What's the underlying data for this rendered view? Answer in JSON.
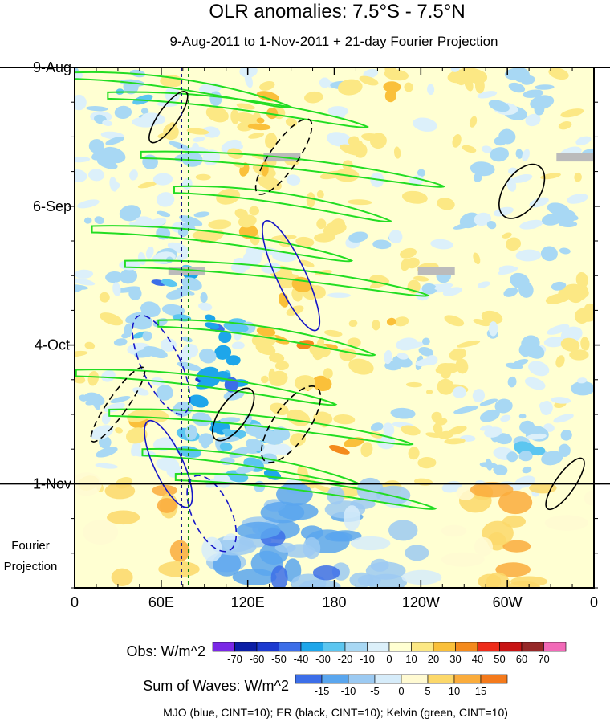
{
  "chart_data": {
    "type": "heatmap",
    "title": "OLR anomalies: 7.5°S - 7.5°N",
    "subtitle": "9-Aug-2011 to 1-Nov-2011 + 21-day Fourier Projection",
    "x_tick_labels": [
      "0",
      "60E",
      "120E",
      "180",
      "120W",
      "60W",
      "0"
    ],
    "x_tick_degrees": [
      0,
      60,
      120,
      180,
      240,
      300,
      360
    ],
    "xlim": [
      0,
      360
    ],
    "y_tick_labels": [
      "9-Aug",
      "6-Sep",
      "4-Oct",
      "1-Nov"
    ],
    "y_tick_days": [
      0,
      28,
      56,
      84
    ],
    "ylim_days": [
      0,
      105
    ],
    "forecast_label_line1": "Fourier",
    "forecast_label_line2": "Projection",
    "obs_colorbar": {
      "label": "Obs: W/m^2",
      "tick_labels": [
        "-70",
        "-60",
        "-50",
        "-40",
        "-30",
        "-20",
        "-10",
        "0",
        "10",
        "20",
        "30",
        "40",
        "50",
        "60",
        "70"
      ],
      "colors": [
        "#7a28e6",
        "#0b1ea6",
        "#1c3ad0",
        "#3c6ee8",
        "#1ea6ea",
        "#5cc6f0",
        "#a8d8f4",
        "#dcf0fa",
        "#ffffd2",
        "#fce884",
        "#fac03a",
        "#f48a1c",
        "#ee2c1a",
        "#c81414",
        "#962828",
        "#f26ab8"
      ]
    },
    "waves_colorbar": {
      "label": "Sum of Waves: W/m^2",
      "tick_labels": [
        "-15",
        "-10",
        "-5",
        "0",
        "5",
        "10",
        "15"
      ],
      "colors": [
        "#3c6ee8",
        "#5aa6ee",
        "#9ccaf2",
        "#d6ecfa",
        "#fffad2",
        "#fcd86a",
        "#faac3c",
        "#f47a1c"
      ]
    },
    "footer": "MJO (blue, CINT=10); ER (black, CINT=10); Kelvin (green, CINT=10)",
    "series": [
      {
        "name": "MJO",
        "color": "#1414c8"
      },
      {
        "name": "ER",
        "color": "#000000"
      },
      {
        "name": "Kelvin",
        "color": "#22dd22"
      }
    ],
    "features": {
      "obs_end_day": 84,
      "reference_longitudes": [
        74,
        79
      ],
      "kelvin_days": [
        2,
        6,
        18,
        25,
        33,
        40,
        52,
        62,
        70,
        78,
        83
      ],
      "mjo_centers": [
        [
          150,
          42
        ],
        [
          60,
          60
        ],
        [
          65,
          80
        ],
        [
          95,
          90
        ]
      ],
      "er_centers": [
        [
          65,
          10
        ],
        [
          145,
          18
        ],
        [
          310,
          25
        ],
        [
          30,
          68
        ],
        [
          110,
          70
        ],
        [
          150,
          72
        ],
        [
          340,
          84
        ]
      ],
      "missing_patches": [
        [
          131,
          18
        ],
        [
          65,
          41
        ],
        [
          238,
          41
        ],
        [
          334,
          18
        ]
      ]
    }
  }
}
